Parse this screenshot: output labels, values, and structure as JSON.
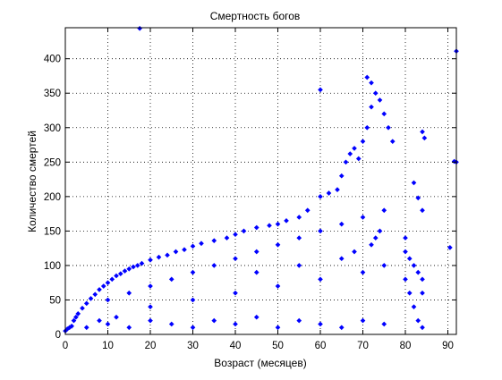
{
  "chart_data": {
    "type": "scatter",
    "title": "Смертность богов",
    "xlabel": "Возраст (месяцев)",
    "ylabel": "Количество смертей",
    "xlim": [
      0,
      92
    ],
    "ylim": [
      0,
      445
    ],
    "xticks": [
      0,
      10,
      20,
      30,
      40,
      50,
      60,
      70,
      80,
      90
    ],
    "yticks": [
      0,
      50,
      100,
      150,
      200,
      250,
      300,
      350,
      400
    ],
    "grid": true,
    "grid_style": "dotted",
    "marker": "diamond",
    "marker_color": "#0000ff",
    "series": [
      {
        "points": [
          [
            0,
            5
          ],
          [
            0.5,
            8
          ],
          [
            1,
            10
          ],
          [
            1.5,
            12
          ],
          [
            2,
            20
          ],
          [
            2.5,
            25
          ],
          [
            3,
            30
          ],
          [
            4,
            38
          ],
          [
            5,
            45
          ],
          [
            6,
            52
          ],
          [
            7,
            58
          ],
          [
            8,
            65
          ],
          [
            9,
            70
          ],
          [
            10,
            75
          ],
          [
            11,
            80
          ],
          [
            12,
            85
          ],
          [
            13,
            88
          ],
          [
            14,
            92
          ],
          [
            15,
            95
          ],
          [
            16,
            98
          ],
          [
            17,
            100
          ],
          [
            18,
            103
          ],
          [
            20,
            108
          ],
          [
            22,
            112
          ],
          [
            24,
            115
          ],
          [
            26,
            120
          ],
          [
            28,
            123
          ],
          [
            30,
            128
          ],
          [
            32,
            132
          ],
          [
            35,
            136
          ],
          [
            38,
            140
          ],
          [
            40,
            145
          ],
          [
            42,
            150
          ],
          [
            45,
            155
          ],
          [
            48,
            158
          ],
          [
            50,
            160
          ],
          [
            52,
            165
          ],
          [
            55,
            170
          ],
          [
            57,
            180
          ],
          [
            60,
            200
          ],
          [
            62,
            205
          ],
          [
            64,
            210
          ],
          [
            65,
            230
          ],
          [
            66,
            250
          ],
          [
            67,
            262
          ],
          [
            68,
            270
          ],
          [
            69,
            255
          ],
          [
            70,
            280
          ],
          [
            71,
            300
          ],
          [
            72,
            330
          ],
          [
            73,
            350
          ],
          [
            74,
            340
          ],
          [
            75,
            320
          ],
          [
            76,
            300
          ],
          [
            77,
            280
          ],
          [
            60,
            355
          ],
          [
            71,
            373
          ],
          [
            72,
            365
          ],
          [
            17.5,
            444
          ],
          [
            80,
            140
          ],
          [
            80,
            120
          ],
          [
            81,
            110
          ],
          [
            82,
            100
          ],
          [
            83,
            90
          ],
          [
            84,
            80
          ],
          [
            84,
            60
          ],
          [
            80,
            80
          ],
          [
            81,
            60
          ],
          [
            82,
            40
          ],
          [
            83,
            20
          ],
          [
            84,
            10
          ],
          [
            82,
            220
          ],
          [
            83,
            198
          ],
          [
            84,
            180
          ],
          [
            84,
            294
          ],
          [
            84.5,
            285
          ],
          [
            90.5,
            126
          ],
          [
            91.5,
            251
          ],
          [
            92,
            411
          ],
          [
            92,
            250
          ],
          [
            5,
            10
          ],
          [
            8,
            20
          ],
          [
            10,
            15
          ],
          [
            12,
            25
          ],
          [
            15,
            10
          ],
          [
            20,
            20
          ],
          [
            25,
            15
          ],
          [
            30,
            10
          ],
          [
            35,
            20
          ],
          [
            40,
            15
          ],
          [
            45,
            25
          ],
          [
            50,
            10
          ],
          [
            55,
            20
          ],
          [
            60,
            15
          ],
          [
            65,
            10
          ],
          [
            70,
            20
          ],
          [
            75,
            15
          ],
          [
            10,
            50
          ],
          [
            15,
            60
          ],
          [
            20,
            70
          ],
          [
            25,
            80
          ],
          [
            30,
            90
          ],
          [
            35,
            100
          ],
          [
            40,
            110
          ],
          [
            45,
            120
          ],
          [
            50,
            130
          ],
          [
            55,
            140
          ],
          [
            60,
            150
          ],
          [
            65,
            160
          ],
          [
            70,
            170
          ],
          [
            75,
            180
          ],
          [
            20,
            40
          ],
          [
            30,
            50
          ],
          [
            40,
            60
          ],
          [
            50,
            70
          ],
          [
            60,
            80
          ],
          [
            70,
            90
          ],
          [
            75,
            100
          ],
          [
            45,
            90
          ],
          [
            55,
            100
          ],
          [
            65,
            110
          ],
          [
            68,
            120
          ],
          [
            72,
            130
          ],
          [
            73,
            140
          ],
          [
            74,
            150
          ]
        ]
      }
    ]
  }
}
